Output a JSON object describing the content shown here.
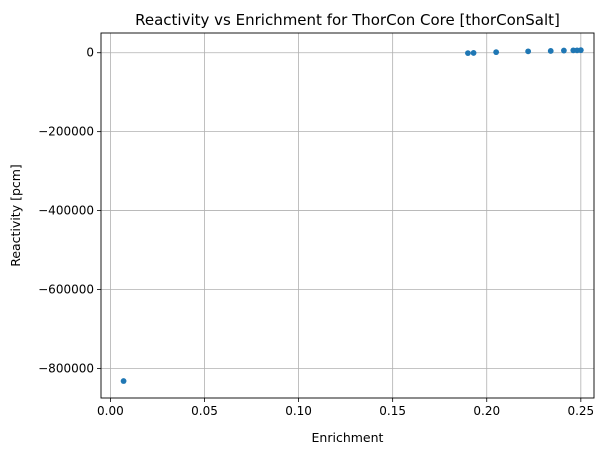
{
  "chart_data": {
    "type": "scatter",
    "title": "Reactivity vs Enrichment for ThorCon Core [thorConSalt]",
    "xlabel": "Enrichment",
    "ylabel": "Reactivity [pcm]",
    "xlim": [
      -0.005,
      0.257
    ],
    "ylim": [
      -875000,
      50000
    ],
    "xticks": [
      0.0,
      0.05,
      0.1,
      0.15,
      0.2,
      0.25
    ],
    "xtick_labels": [
      "0.00",
      "0.05",
      "0.10",
      "0.15",
      "0.20",
      "0.25"
    ],
    "yticks": [
      0,
      -200000,
      -400000,
      -600000,
      -800000
    ],
    "ytick_labels": [
      "0",
      "−200000",
      "−400000",
      "−600000",
      "−800000"
    ],
    "grid": true,
    "color": "#1f77b4",
    "points": [
      {
        "x": 0.007,
        "y": -832000
      },
      {
        "x": 0.19,
        "y": -1000
      },
      {
        "x": 0.193,
        "y": -500
      },
      {
        "x": 0.205,
        "y": 1500
      },
      {
        "x": 0.222,
        "y": 3500
      },
      {
        "x": 0.234,
        "y": 4500
      },
      {
        "x": 0.241,
        "y": 5500
      },
      {
        "x": 0.246,
        "y": 6000
      },
      {
        "x": 0.248,
        "y": 6000
      },
      {
        "x": 0.25,
        "y": 6500
      }
    ]
  }
}
